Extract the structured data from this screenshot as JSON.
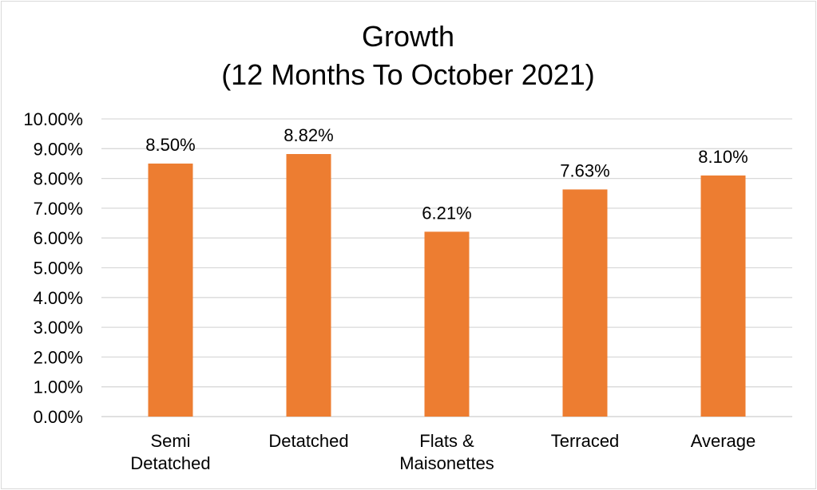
{
  "chart_data": {
    "type": "bar",
    "title_lines": [
      "Growth",
      "(12 Months To October 2021)"
    ],
    "categories": [
      [
        "Semi",
        "Detatched"
      ],
      [
        "Detatched"
      ],
      [
        "Flats &",
        "Maisonettes"
      ],
      [
        "Terraced"
      ],
      [
        "Average"
      ]
    ],
    "values": [
      8.5,
      8.82,
      6.21,
      7.63,
      8.1
    ],
    "data_labels": [
      "8.50%",
      "8.82%",
      "6.21%",
      "7.63%",
      "8.10%"
    ],
    "yticks": [
      "0.00%",
      "1.00%",
      "2.00%",
      "3.00%",
      "4.00%",
      "5.00%",
      "6.00%",
      "7.00%",
      "8.00%",
      "9.00%",
      "10.00%"
    ],
    "ylim": [
      0,
      10
    ],
    "grid": true,
    "bar_color": "#ED7D31",
    "grid_color": "#D9D9D9"
  }
}
